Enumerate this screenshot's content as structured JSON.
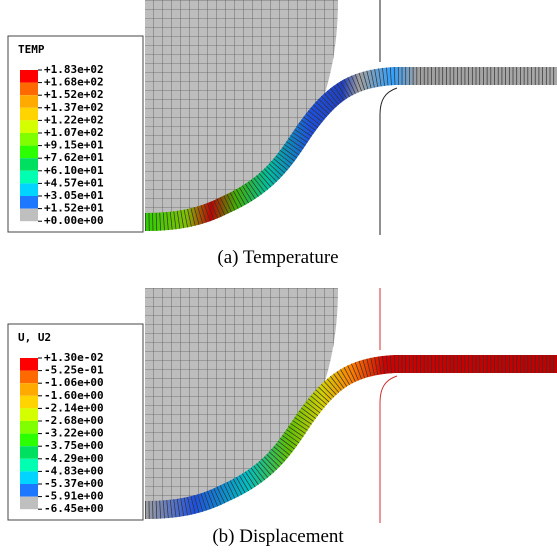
{
  "panels": [
    {
      "caption": "(a)  Temperature",
      "legend": {
        "title": "TEMP",
        "labels": [
          "+1.83e+02",
          "+1.68e+02",
          "+1.52e+02",
          "+1.37e+02",
          "+1.22e+02",
          "+1.07e+02",
          "+9.15e+01",
          "+7.62e+01",
          "+6.10e+01",
          "+4.57e+01",
          "+3.05e+01",
          "+1.52e+01",
          "+0.00e+00"
        ],
        "colors": [
          "#ff0000",
          "#ff6a00",
          "#ffaa00",
          "#ffd400",
          "#d4ff00",
          "#80ff00",
          "#2bff00",
          "#00e060",
          "#00ffb0",
          "#00d4ff",
          "#1e78ff",
          "#bfbfbf"
        ]
      }
    },
    {
      "caption": "(b)  Displacement",
      "legend": {
        "title": "U, U2",
        "labels": [
          "+1.30e-02",
          "-5.25e-01",
          "-1.06e+00",
          "-1.60e+00",
          "-2.14e+00",
          "-2.68e+00",
          "-3.22e+00",
          "-3.75e+00",
          "-4.29e+00",
          "-4.83e+00",
          "-5.37e+00",
          "-5.91e+00",
          "-6.45e+00"
        ],
        "colors": [
          "#ff0000",
          "#ff6a00",
          "#ffaa00",
          "#ffd400",
          "#d4ff00",
          "#80ff00",
          "#2bff00",
          "#00e060",
          "#00ffb0",
          "#00d4ff",
          "#1e78ff",
          "#bfbfbf"
        ]
      }
    }
  ]
}
